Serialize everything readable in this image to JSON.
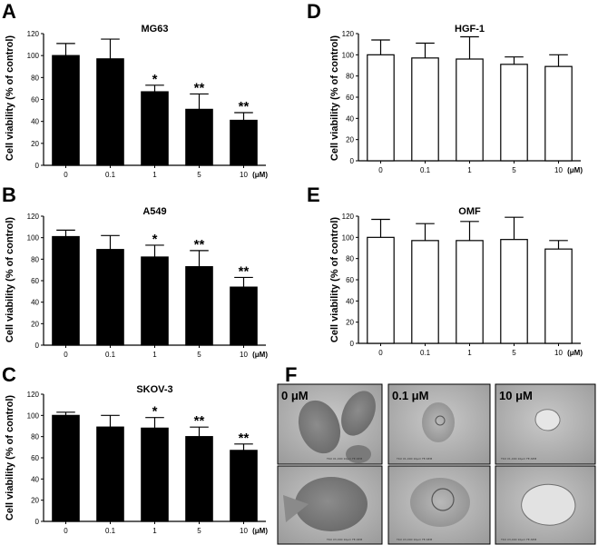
{
  "panels": {
    "A": "A",
    "B": "B",
    "C": "C",
    "D": "D",
    "E": "E",
    "F": "F"
  },
  "chart_data": [
    {
      "id": "A",
      "type": "bar",
      "title": "MG63",
      "xlabel": "",
      "ylabel": "Cell viability (% of control)",
      "unit": "(μM)",
      "categories": [
        "0",
        "0.1",
        "1",
        "5",
        "10"
      ],
      "values": [
        100,
        97,
        67,
        51,
        41
      ],
      "errors": [
        11,
        18,
        6,
        14,
        7
      ],
      "annotations": [
        "",
        "",
        "*",
        "**",
        "**"
      ],
      "ylim": [
        0,
        120
      ],
      "yticks": [
        0,
        20,
        40,
        60,
        80,
        100,
        120
      ],
      "bar_color": "#000000"
    },
    {
      "id": "B",
      "type": "bar",
      "title": "A549",
      "xlabel": "",
      "ylabel": "Cell viability (% of control)",
      "unit": "(μM)",
      "categories": [
        "0",
        "0.1",
        "1",
        "5",
        "10"
      ],
      "values": [
        101,
        89,
        82,
        73,
        54
      ],
      "errors": [
        6,
        13,
        11,
        15,
        9
      ],
      "annotations": [
        "",
        "",
        "*",
        "**",
        "**"
      ],
      "ylim": [
        0,
        120
      ],
      "yticks": [
        0,
        20,
        40,
        60,
        80,
        100,
        120
      ],
      "bar_color": "#000000"
    },
    {
      "id": "C",
      "type": "bar",
      "title": "SKOV-3",
      "xlabel": "",
      "ylabel": "Cell viability (% of control)",
      "unit": "(μM)",
      "categories": [
        "0",
        "0.1",
        "1",
        "5",
        "10"
      ],
      "values": [
        100,
        89,
        88,
        80,
        67
      ],
      "errors": [
        3,
        11,
        10,
        9,
        6
      ],
      "annotations": [
        "",
        "",
        "*",
        "**",
        "**"
      ],
      "ylim": [
        0,
        120
      ],
      "yticks": [
        0,
        20,
        40,
        60,
        80,
        100,
        120
      ],
      "bar_color": "#000000"
    },
    {
      "id": "D",
      "type": "bar",
      "title": "HGF-1",
      "xlabel": "",
      "ylabel": "Cell viability (% of control)",
      "unit": "(μM)",
      "categories": [
        "0",
        "0.1",
        "1",
        "5",
        "10"
      ],
      "values": [
        100,
        97,
        96,
        91,
        89
      ],
      "errors": [
        14,
        14,
        21,
        7,
        11
      ],
      "annotations": [
        "",
        "",
        "",
        "",
        ""
      ],
      "ylim": [
        0,
        120
      ],
      "yticks": [
        0,
        20,
        40,
        60,
        80,
        100,
        120
      ],
      "bar_color": "#ffffff"
    },
    {
      "id": "E",
      "type": "bar",
      "title": "OMF",
      "xlabel": "",
      "ylabel": "Cell viability (% of control)",
      "unit": "(μM)",
      "categories": [
        "0",
        "0.1",
        "1",
        "5",
        "10"
      ],
      "values": [
        100,
        97,
        97,
        98,
        89
      ],
      "errors": [
        17,
        16,
        18,
        21,
        8
      ],
      "annotations": [
        "",
        "",
        "",
        "",
        ""
      ],
      "ylim": [
        0,
        120
      ],
      "yticks": [
        0,
        20,
        40,
        60,
        80,
        100,
        120
      ],
      "bar_color": "#ffffff"
    }
  ],
  "micrographs": {
    "labels": [
      "0 μM",
      "0.1 μM",
      "10 μM"
    ]
  }
}
